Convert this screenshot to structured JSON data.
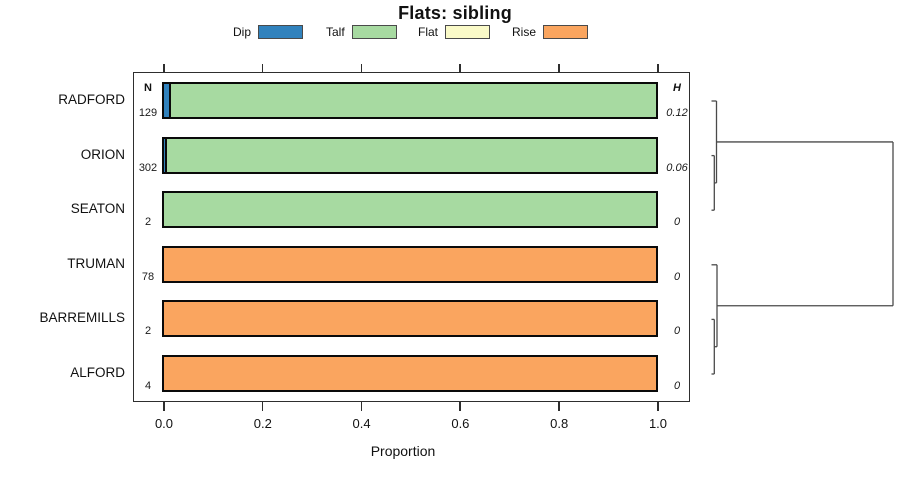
{
  "title": "Flats: sibling",
  "legend": [
    {
      "label": "Dip",
      "color": "#3182BD"
    },
    {
      "label": "Talf",
      "color": "#A7DAA1"
    },
    {
      "label": "Flat",
      "color": "#FAFAC8"
    },
    {
      "label": "Rise",
      "color": "#FAA55F"
    }
  ],
  "columns": {
    "n_header": "N",
    "h_header": "H"
  },
  "x_axis": {
    "label": "Proportion",
    "ticks": [
      "0.0",
      "0.2",
      "0.4",
      "0.6",
      "0.8",
      "1.0"
    ]
  },
  "chart_data": {
    "type": "bar",
    "variant": "horizontal-stacked-proportion",
    "title": "Flats: sibling",
    "xlabel": "Proportion",
    "xlim": [
      0,
      1
    ],
    "xticks": [
      0.0,
      0.2,
      0.4,
      0.6,
      0.8,
      1.0
    ],
    "categories": [
      "Dip",
      "Talf",
      "Flat",
      "Rise"
    ],
    "category_colors": {
      "Dip": "#3182BD",
      "Talf": "#A7DAA1",
      "Flat": "#FAFAC8",
      "Rise": "#FAA55F"
    },
    "rows": [
      {
        "name": "RADFORD",
        "n": "129",
        "h": "0.12",
        "segments": [
          {
            "category": "Dip",
            "value": 0.014
          },
          {
            "category": "Talf",
            "value": 0.986
          }
        ]
      },
      {
        "name": "ORION",
        "n": "302",
        "h": "0.06",
        "segments": [
          {
            "category": "Dip",
            "value": 0.006
          },
          {
            "category": "Talf",
            "value": 0.994
          }
        ]
      },
      {
        "name": "SEATON",
        "n": "2",
        "h": "0",
        "segments": [
          {
            "category": "Talf",
            "value": 1.0
          }
        ]
      },
      {
        "name": "TRUMAN",
        "n": "78",
        "h": "0",
        "segments": [
          {
            "category": "Rise",
            "value": 1.0
          }
        ]
      },
      {
        "name": "BARREMILLS",
        "n": "2",
        "h": "0",
        "segments": [
          {
            "category": "Rise",
            "value": 1.0
          }
        ]
      },
      {
        "name": "ALFORD",
        "n": "4",
        "h": "0",
        "segments": [
          {
            "category": "Rise",
            "value": 1.0
          }
        ]
      }
    ],
    "dendrogram": {
      "position": "right-margin",
      "structure": [
        {
          "cluster": [
            "RADFORD",
            [
              "ORION",
              "SEATON"
            ]
          ]
        },
        {
          "cluster": [
            "TRUMAN",
            [
              "BARREMILLS",
              "ALFORD"
            ]
          ]
        }
      ],
      "root": "joins both clusters at far right"
    }
  }
}
